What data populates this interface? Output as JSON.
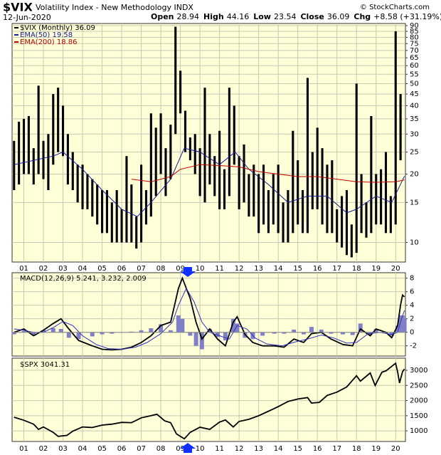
{
  "header": {
    "symbol": "$VIX",
    "name": "Volatility Index - New Methodology  INDX",
    "source": "© StockCharts.com",
    "date": "12-Jun-2020",
    "quote": [
      {
        "label": "Open",
        "value": 28.94
      },
      {
        "label": "High",
        "value": 44.16
      },
      {
        "label": "Low",
        "value": 23.54
      },
      {
        "label": "Close",
        "value": 36.09
      },
      {
        "label": "Chg",
        "value": "+8.58 (+31.19%)"
      }
    ]
  },
  "chart_data": [
    {
      "type": "hilo",
      "log_scale": true,
      "grid": true,
      "xlim": [
        2000.4,
        2020.5
      ],
      "ylim": [
        8.2,
        92
      ],
      "xticks": [
        {
          "value": 2001,
          "label": "01"
        },
        {
          "value": 2002,
          "label": "02"
        },
        {
          "value": 2003,
          "label": "03"
        },
        {
          "value": 2004,
          "label": "04"
        },
        {
          "value": 2005,
          "label": "05"
        },
        {
          "value": 2006,
          "label": "06"
        },
        {
          "value": 2007,
          "label": "07"
        },
        {
          "value": 2008,
          "label": "08"
        },
        {
          "value": 2009,
          "label": "09"
        },
        {
          "value": 2010,
          "label": "10"
        },
        {
          "value": 2011,
          "label": "11"
        },
        {
          "value": 2012,
          "label": "12"
        },
        {
          "value": 2013,
          "label": "13"
        },
        {
          "value": 2014,
          "label": "14"
        },
        {
          "value": 2015,
          "label": "15"
        },
        {
          "value": 2016,
          "label": "16"
        },
        {
          "value": 2017,
          "label": "17"
        },
        {
          "value": 2018,
          "label": "18"
        },
        {
          "value": 2019,
          "label": "19"
        },
        {
          "value": 2020,
          "label": "20"
        }
      ],
      "yticks": [
        10,
        15,
        20,
        25,
        30,
        35,
        40,
        45,
        50,
        55,
        60,
        65,
        70,
        75,
        80,
        85,
        90
      ],
      "x": [
        2000.5,
        2000.75,
        2001,
        2001.25,
        2001.5,
        2001.75,
        2002,
        2002.25,
        2002.5,
        2002.75,
        2003,
        2003.25,
        2003.5,
        2003.75,
        2004,
        2004.25,
        2004.5,
        2004.75,
        2005,
        2005.25,
        2005.5,
        2005.75,
        2006,
        2006.25,
        2006.5,
        2006.75,
        2007,
        2007.25,
        2007.5,
        2007.75,
        2008,
        2008.25,
        2008.5,
        2008.75,
        2009,
        2009.25,
        2009.5,
        2009.75,
        2010,
        2010.25,
        2010.5,
        2010.75,
        2011,
        2011.25,
        2011.5,
        2011.75,
        2012,
        2012.25,
        2012.5,
        2012.75,
        2013,
        2013.25,
        2013.5,
        2013.75,
        2014,
        2014.25,
        2014.5,
        2014.75,
        2015,
        2015.25,
        2015.5,
        2015.75,
        2016,
        2016.25,
        2016.5,
        2016.75,
        2017,
        2017.25,
        2017.5,
        2017.75,
        2018,
        2018.25,
        2018.5,
        2018.75,
        2019,
        2019.25,
        2019.5,
        2019.75,
        2020,
        2020.25
      ],
      "series": [
        {
          "name": "$VIX (Monthly) 36.09",
          "color": "#000000",
          "high": [
            28,
            34,
            35,
            36,
            26,
            49,
            28,
            30,
            45,
            48,
            40,
            30,
            25,
            22,
            22,
            20,
            19,
            18,
            17,
            17,
            15,
            17,
            14,
            24,
            18,
            13,
            22,
            17,
            37,
            32,
            37,
            26,
            33,
            89,
            57,
            38,
            29,
            30,
            26,
            48,
            30,
            24,
            31,
            21,
            48,
            40,
            24,
            27,
            20,
            22,
            20,
            22,
            17,
            20,
            22,
            15,
            17,
            31,
            23,
            17,
            53,
            25,
            32,
            26,
            22,
            23,
            14,
            16,
            17,
            12,
            50,
            20,
            15,
            36,
            20,
            21,
            25,
            16,
            85,
            45
          ],
          "low": [
            17,
            18,
            20,
            20,
            18,
            20,
            19,
            17,
            22,
            25,
            24,
            18,
            17,
            15,
            14,
            14,
            13,
            12,
            11,
            11,
            10,
            10,
            10,
            10,
            10,
            9.4,
            10,
            12,
            13,
            16,
            20,
            16,
            19,
            30,
            37,
            25,
            23,
            20,
            16,
            15,
            18,
            16,
            14,
            14,
            16,
            22,
            14,
            15,
            13,
            13,
            11,
            12,
            11,
            12,
            11,
            10,
            10,
            11,
            12,
            11,
            11,
            14,
            14,
            12,
            11,
            11,
            10,
            9.5,
            8.8,
            8.6,
            9,
            11,
            10.5,
            11,
            12,
            12,
            11,
            11,
            12,
            23
          ]
        },
        {
          "name": "EMA(50) 19.58",
          "color": "#1c1c9c",
          "x": [
            2000.5,
            2002.5,
            2003,
            2004,
            2005,
            2006,
            2006.8,
            2007.5,
            2008.5,
            2009.2,
            2010,
            2011,
            2011.8,
            2012.5,
            2013.5,
            2014.5,
            2015.5,
            2016.5,
            2017.5,
            2018,
            2019,
            2019.8,
            2020.45
          ],
          "values": [
            22,
            24,
            25,
            21,
            17,
            14,
            13,
            15,
            19,
            26,
            25,
            22,
            25,
            21,
            18,
            15,
            16,
            16,
            13.5,
            14,
            16,
            15,
            19.58
          ]
        },
        {
          "name": "EMA(200) 18.86",
          "color": "#c00000",
          "x": [
            2006.5,
            2007.5,
            2008.5,
            2009,
            2010,
            2011,
            2012,
            2013,
            2014,
            2015,
            2016,
            2017,
            2018,
            2019,
            2020,
            2020.45
          ],
          "values": [
            19,
            18.5,
            19.5,
            21,
            22,
            21.8,
            21.5,
            20.5,
            20,
            19.5,
            19.5,
            19,
            18.5,
            18.4,
            18.5,
            18.86
          ]
        }
      ]
    },
    {
      "type": "macd",
      "grid": true,
      "xlim": [
        2000.4,
        2020.5
      ],
      "ylim": [
        -3.5,
        8.8
      ],
      "yticks": [
        -2,
        0,
        2,
        4,
        6,
        8
      ],
      "name": "MACD(12,26,9) 5.241, 3.232, 2.009",
      "series": [
        {
          "role": "histogram",
          "color": "#8080c8",
          "x": [
            2000.5,
            2001,
            2001.5,
            2002,
            2002.5,
            2002.9,
            2003.3,
            2003.8,
            2004.5,
            2005,
            2005.5,
            2006,
            2006.5,
            2007,
            2007.5,
            2008,
            2008.5,
            2008.9,
            2009.1,
            2009.5,
            2009.8,
            2010.1,
            2010.5,
            2010.9,
            2011.3,
            2011.7,
            2011.9,
            2012.3,
            2012.7,
            2013.2,
            2013.8,
            2014.3,
            2014.8,
            2015.3,
            2015.7,
            2016.2,
            2016.7,
            2017.3,
            2017.8,
            2018.2,
            2018.7,
            2019,
            2019.5,
            2019.8,
            2020.1,
            2020.25,
            2020.35,
            2020.45
          ],
          "values": [
            -0.3,
            0.2,
            -0.5,
            0.3,
            0.6,
            0.5,
            -0.8,
            -1,
            -0.6,
            -0.3,
            -0.2,
            0,
            0.1,
            0.3,
            0.6,
            1.2,
            0.3,
            2.5,
            2,
            -0.5,
            -2,
            -2.5,
            0.5,
            -0.7,
            -1.2,
            2,
            1.3,
            -0.8,
            -1,
            -0.5,
            -0.2,
            -0.2,
            0.4,
            -0.3,
            0.8,
            0.4,
            -0.2,
            -0.3,
            -0.4,
            1.3,
            -0.4,
            0.5,
            0.1,
            -0.5,
            1,
            2.5,
            2.5,
            2.009
          ]
        },
        {
          "role": "macd",
          "color": "#000000",
          "x": [
            2000.5,
            2001,
            2001.5,
            2002,
            2002.5,
            2002.9,
            2003.3,
            2003.8,
            2004.5,
            2005,
            2005.5,
            2006,
            2006.5,
            2007,
            2007.5,
            2008,
            2008.5,
            2008.9,
            2009.1,
            2009.5,
            2009.8,
            2010.1,
            2010.5,
            2010.9,
            2011.3,
            2011.7,
            2011.9,
            2012.3,
            2012.7,
            2013.2,
            2013.8,
            2014.3,
            2014.8,
            2015.3,
            2015.7,
            2016.2,
            2016.7,
            2017.3,
            2017.8,
            2018.2,
            2018.7,
            2019,
            2019.5,
            2019.8,
            2020.1,
            2020.25,
            2020.35,
            2020.45
          ],
          "values": [
            0,
            0.5,
            -0.5,
            0.3,
            1.3,
            2,
            0.5,
            -1.2,
            -2,
            -2.5,
            -2.6,
            -2.5,
            -2.2,
            -1.5,
            -0.5,
            1,
            1.5,
            6.5,
            8,
            5,
            1.5,
            -1,
            0.5,
            -1,
            -2,
            1.5,
            2.3,
            -0.3,
            -1.5,
            -2,
            -2,
            -2.2,
            -1,
            -1.5,
            -0.2,
            0,
            -1,
            -1.8,
            -2,
            0.5,
            -0.5,
            0.5,
            0,
            -0.8,
            1,
            4,
            5.5,
            5.241
          ]
        },
        {
          "role": "signal",
          "color": "#3030c0",
          "x": [
            2000.5,
            2001,
            2001.5,
            2002,
            2002.5,
            2003,
            2003.5,
            2004,
            2004.7,
            2005.3,
            2006,
            2006.7,
            2007.3,
            2008,
            2008.6,
            2008.9,
            2009.3,
            2009.7,
            2010.1,
            2010.5,
            2011,
            2011.5,
            2011.9,
            2012.4,
            2012.8,
            2013.4,
            2014.2,
            2014.9,
            2015.5,
            2016.2,
            2016.8,
            2017.5,
            2018,
            2018.6,
            2019.2,
            2019.8,
            2020.1,
            2020.3,
            2020.45
          ],
          "values": [
            0.5,
            0.3,
            0,
            0,
            0.7,
            1.6,
            1,
            -0.5,
            -1.8,
            -2.4,
            -2.5,
            -2.2,
            -1.5,
            -0.2,
            1.5,
            4,
            6.5,
            4.5,
            1.5,
            0,
            -0.5,
            -1,
            1,
            0.5,
            -0.8,
            -1.7,
            -2,
            -1.4,
            -1,
            -0.4,
            -0.8,
            -1.6,
            -1.5,
            -0.2,
            0,
            -0.3,
            0,
            2,
            3.232
          ]
        }
      ]
    },
    {
      "type": "line",
      "grid": true,
      "xlim": [
        2000.4,
        2020.5
      ],
      "ylim": [
        650,
        3400
      ],
      "yticks": [
        1000,
        1500,
        2000,
        2500,
        3000
      ],
      "xticks": [
        {
          "value": 2001,
          "label": "01"
        },
        {
          "value": 2002,
          "label": "02"
        },
        {
          "value": 2003,
          "label": "03"
        },
        {
          "value": 2004,
          "label": "04"
        },
        {
          "value": 2005,
          "label": "05"
        },
        {
          "value": 2006,
          "label": "06"
        },
        {
          "value": 2007,
          "label": "07"
        },
        {
          "value": 2008,
          "label": "08"
        },
        {
          "value": 2009,
          "label": "09"
        },
        {
          "value": 2010,
          "label": "10"
        },
        {
          "value": 2011,
          "label": "11"
        },
        {
          "value": 2012,
          "label": "12"
        },
        {
          "value": 2013,
          "label": "13"
        },
        {
          "value": 2014,
          "label": "14"
        },
        {
          "value": 2015,
          "label": "15"
        },
        {
          "value": 2016,
          "label": "16"
        },
        {
          "value": 2017,
          "label": "17"
        },
        {
          "value": 2018,
          "label": "18"
        },
        {
          "value": 2019,
          "label": "19"
        },
        {
          "value": 2020,
          "label": "20"
        }
      ],
      "series": [
        {
          "name": "$SPX 3041.31",
          "color": "#000000",
          "x": [
            2000.5,
            2001,
            2001.5,
            2001.75,
            2002,
            2002.5,
            2002.75,
            2003.2,
            2003.5,
            2004,
            2004.5,
            2005,
            2005.5,
            2006,
            2006.5,
            2007,
            2007.5,
            2007.8,
            2008.2,
            2008.5,
            2008.8,
            2009.2,
            2009.5,
            2010,
            2010.5,
            2011,
            2011.3,
            2011.7,
            2012,
            2012.5,
            2013,
            2013.5,
            2014,
            2014.5,
            2015,
            2015.5,
            2015.7,
            2016.1,
            2016.5,
            2017,
            2017.5,
            2018,
            2018.2,
            2018.7,
            2018.95,
            2019.3,
            2019.5,
            2020,
            2020.1,
            2020.2,
            2020.35,
            2020.45
          ],
          "values": [
            1450,
            1350,
            1220,
            1050,
            1130,
            950,
            820,
            850,
            990,
            1130,
            1110,
            1190,
            1220,
            1280,
            1270,
            1430,
            1500,
            1550,
            1330,
            1270,
            900,
            740,
            950,
            1120,
            1050,
            1290,
            1360,
            1130,
            1310,
            1380,
            1500,
            1650,
            1800,
            1970,
            2050,
            2100,
            1920,
            1940,
            2170,
            2280,
            2450,
            2820,
            2640,
            2910,
            2500,
            2940,
            2980,
            3230,
            2950,
            2580,
            2950,
            3041.31
          ]
        }
      ]
    }
  ]
}
